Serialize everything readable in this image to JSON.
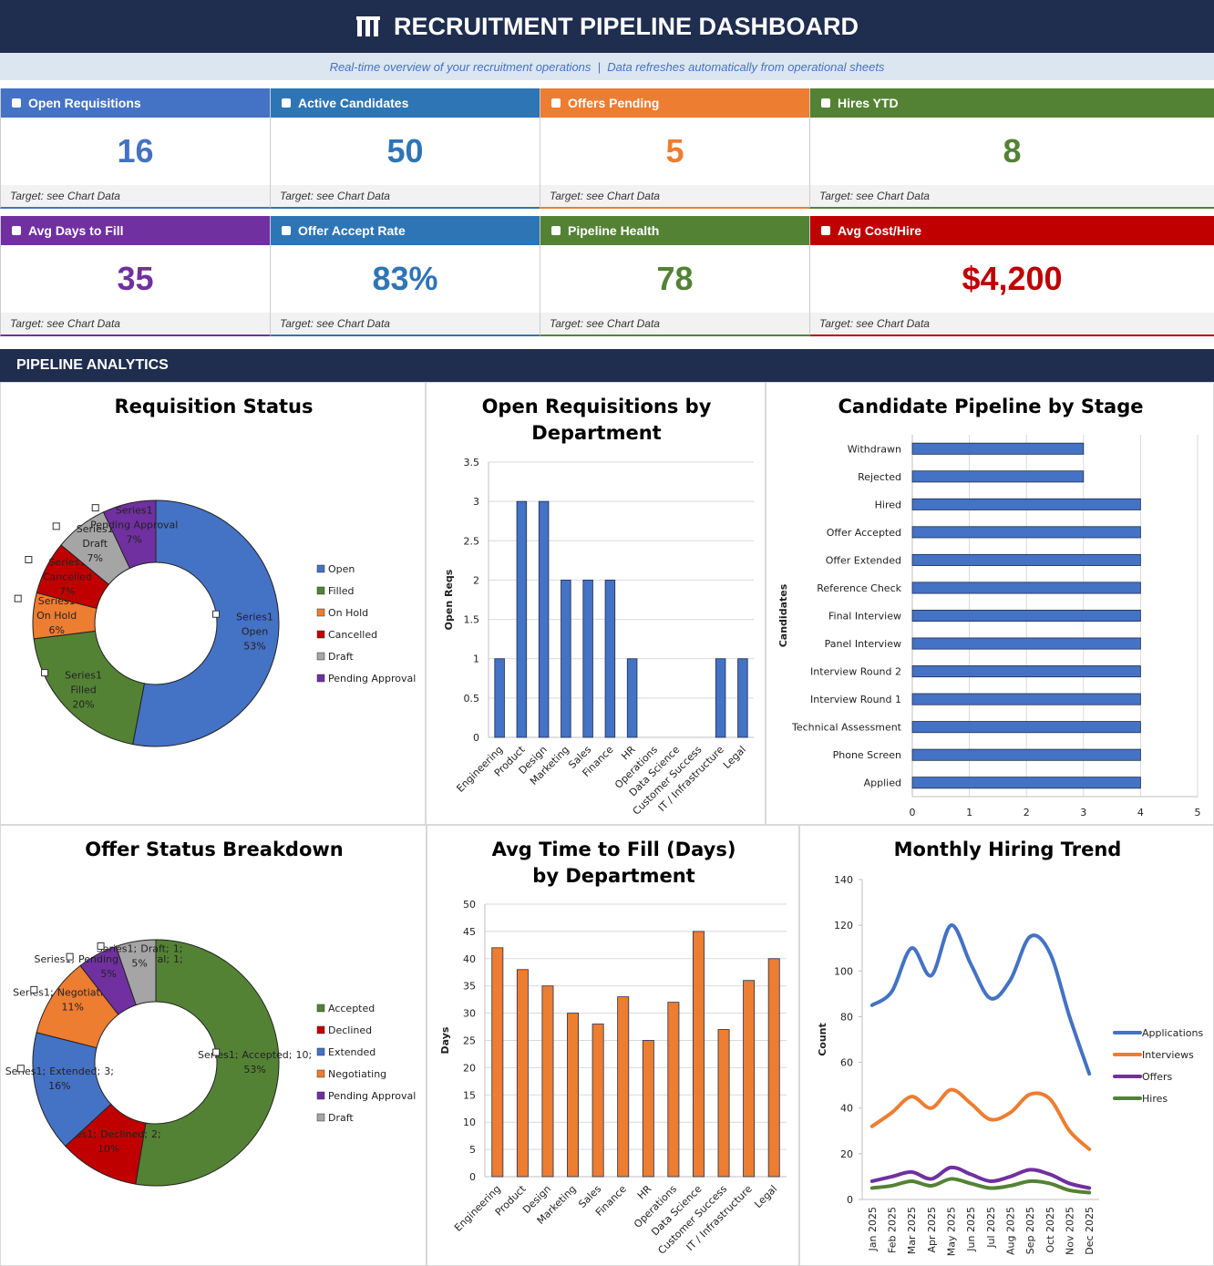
{
  "header": {
    "title": "RECRUITMENT PIPELINE DASHBOARD",
    "subtitle": "Real-time overview of your recruitment operations  |  Data refreshes automatically from operational sheets"
  },
  "kpis": [
    {
      "label": "Open Requisitions",
      "value": "16",
      "target": "Target: see Chart Data",
      "color": "#4472c4"
    },
    {
      "label": "Active Candidates",
      "value": "50",
      "target": "Target: see Chart Data",
      "color": "#2e75b6"
    },
    {
      "label": "Offers Pending",
      "value": "5",
      "target": "Target: see Chart Data",
      "color": "#ed7d31"
    },
    {
      "label": "Hires YTD",
      "value": "8",
      "target": "Target: see Chart Data",
      "color": "#548235"
    },
    {
      "label": "Avg Days to Fill",
      "value": "35",
      "target": "Target: see Chart Data",
      "color": "#7030a0"
    },
    {
      "label": "Offer Accept Rate",
      "value": "83%",
      "target": "Target: see Chart Data",
      "color": "#2e75b6"
    },
    {
      "label": "Pipeline Health",
      "value": "78",
      "target": "Target: see Chart Data",
      "color": "#548235"
    },
    {
      "label": "Avg Cost/Hire",
      "value": "$4,200",
      "target": "Target: see Chart Data",
      "color": "#c00000"
    }
  ],
  "section_title": "PIPELINE ANALYTICS",
  "chart_data": [
    {
      "type": "donut",
      "title": "Requisition Status",
      "series_name": "Series1",
      "categories": [
        "Open",
        "Filled",
        "On Hold",
        "Cancelled",
        "Draft",
        "Pending Approval"
      ],
      "values": [
        53,
        20,
        6,
        7,
        7,
        7
      ],
      "value_labels": [
        "53%",
        "20%",
        "6%",
        "7%",
        "7%",
        "7%"
      ],
      "colors": [
        "#4472c4",
        "#548235",
        "#ed7d31",
        "#c00000",
        "#a5a5a5",
        "#7030a0"
      ]
    },
    {
      "type": "bar",
      "title": "Open Requisitions by Department",
      "y_label": "Open Reqs",
      "color": "#4472c4",
      "categories": [
        "Engineering",
        "Product",
        "Design",
        "Marketing",
        "Sales",
        "Finance",
        "HR",
        "Operations",
        "Data Science",
        "Customer Success",
        "IT / Infrastructure",
        "Legal"
      ],
      "values": [
        1,
        3,
        3,
        2,
        2,
        2,
        1,
        0,
        0,
        0,
        1,
        1
      ],
      "ylim": [
        0,
        3.5
      ],
      "yticks": [
        0,
        0.5,
        1,
        1.5,
        2,
        2.5,
        3,
        3.5
      ],
      "grid": true
    },
    {
      "type": "hbar",
      "title": "Candidate Pipeline by Stage",
      "y_label": "Candidates",
      "color": "#4472c4",
      "categories": [
        "Withdrawn",
        "Rejected",
        "Hired",
        "Offer Accepted",
        "Offer Extended",
        "Reference Check",
        "Final Interview",
        "Panel Interview",
        "Interview Round 2",
        "Interview Round 1",
        "Technical Assessment",
        "Phone Screen",
        "Applied"
      ],
      "values": [
        3,
        3,
        4,
        4,
        4,
        4,
        4,
        4,
        4,
        4,
        4,
        4,
        4
      ],
      "xlim": [
        0,
        5
      ],
      "xticks": [
        0,
        1,
        2,
        3,
        4,
        5
      ],
      "grid": true
    },
    {
      "type": "donut",
      "title": "Offer Status Breakdown",
      "series_name": "Series1",
      "label_separator": ";",
      "categories": [
        "Accepted",
        "Declined",
        "Extended",
        "Negotiating",
        "Pending Approval",
        "Draft"
      ],
      "values": [
        10,
        2,
        3,
        2,
        1,
        1
      ],
      "percent_labels": [
        "53%",
        "10%",
        "16%",
        "11%",
        "5%",
        "5%"
      ],
      "colors": [
        "#548235",
        "#c00000",
        "#4472c4",
        "#ed7d31",
        "#7030a0",
        "#a5a5a5"
      ]
    },
    {
      "type": "bar",
      "title": "Avg Time to Fill (Days) by Department",
      "y_label": "Days",
      "color": "#ed7d31",
      "categories": [
        "Engineering",
        "Product",
        "Design",
        "Marketing",
        "Sales",
        "Finance",
        "HR",
        "Operations",
        "Data Science",
        "Customer Success",
        "IT / Infrastructure",
        "Legal"
      ],
      "values": [
        42,
        38,
        35,
        30,
        28,
        33,
        25,
        32,
        45,
        27,
        36,
        40
      ],
      "ylim": [
        0,
        50
      ],
      "yticks": [
        0,
        5,
        10,
        15,
        20,
        25,
        30,
        35,
        40,
        45,
        50
      ],
      "grid": true
    },
    {
      "type": "line",
      "title": "Monthly Hiring Trend",
      "y_label": "Count",
      "smooth": true,
      "categories": [
        "Jan 2025",
        "Feb 2025",
        "Mar 2025",
        "Apr 2025",
        "May 2025",
        "Jun 2025",
        "Jul 2025",
        "Aug 2025",
        "Sep 2025",
        "Oct 2025",
        "Nov 2025",
        "Dec 2025"
      ],
      "series": [
        {
          "name": "Applications",
          "color": "#4472c4",
          "values": [
            85,
            91,
            110,
            98,
            120,
            103,
            88,
            96,
            115,
            108,
            80,
            55
          ]
        },
        {
          "name": "Interviews",
          "color": "#ed7d31",
          "values": [
            32,
            38,
            45,
            40,
            48,
            42,
            35,
            38,
            46,
            44,
            30,
            22
          ]
        },
        {
          "name": "Offers",
          "color": "#7030a0",
          "values": [
            8,
            10,
            12,
            9,
            14,
            11,
            8,
            10,
            13,
            11,
            7,
            5
          ]
        },
        {
          "name": "Hires",
          "color": "#548235",
          "values": [
            5,
            6,
            8,
            6,
            9,
            7,
            5,
            6,
            8,
            7,
            4,
            3
          ]
        }
      ],
      "ylim": [
        0,
        140
      ],
      "yticks": [
        0,
        20,
        40,
        60,
        80,
        100,
        120,
        140
      ],
      "grid": false,
      "legend": "right"
    }
  ]
}
